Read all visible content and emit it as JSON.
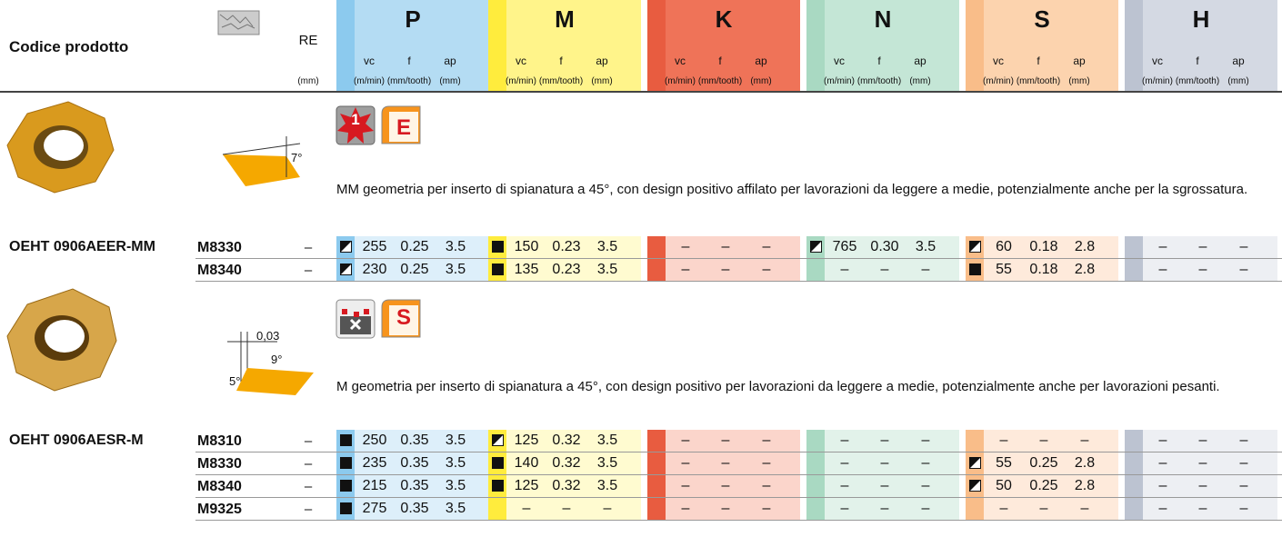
{
  "header": {
    "product_code": "Codice prodotto",
    "re": "RE",
    "re_unit": "(mm)",
    "groups": [
      "P",
      "M",
      "K",
      "N",
      "S",
      "H"
    ],
    "columns": [
      "vc",
      "f",
      "ap"
    ],
    "units": [
      "(m/min)",
      "(mm/tooth)",
      "(mm)"
    ]
  },
  "sections": [
    {
      "icon_label": "1",
      "badge": "E",
      "angles": [
        "7°"
      ],
      "description": "MM geometria per inserto di spianatura a 45°, con design positivo affilato per lavorazioni da leggere a medie, potenzialmente anche per la sgrossatura.",
      "product": "OEHT 0906AEER-MM",
      "rows": [
        {
          "grade": "M8330",
          "re": "–",
          "cells": [
            {
              "icon": "half",
              "values": [
                "255",
                "0.25",
                "3.5"
              ]
            },
            {
              "icon": "full",
              "values": [
                "150",
                "0.23",
                "3.5"
              ]
            },
            {
              "values": [
                "–",
                "–",
                "–"
              ]
            },
            {
              "icon": "half",
              "values": [
                "765",
                "0.30",
                "3.5"
              ]
            },
            {
              "icon": "half",
              "values": [
                "60",
                "0.18",
                "2.8"
              ]
            },
            {
              "values": [
                "–",
                "–",
                "–"
              ]
            }
          ]
        },
        {
          "grade": "M8340",
          "re": "–",
          "cells": [
            {
              "icon": "half",
              "values": [
                "230",
                "0.25",
                "3.5"
              ]
            },
            {
              "icon": "full",
              "values": [
                "135",
                "0.23",
                "3.5"
              ]
            },
            {
              "values": [
                "–",
                "–",
                "–"
              ]
            },
            {
              "values": [
                "–",
                "–",
                "–"
              ]
            },
            {
              "icon": "full",
              "values": [
                "55",
                "0.18",
                "2.8"
              ]
            },
            {
              "values": [
                "–",
                "–",
                "–"
              ]
            }
          ]
        }
      ]
    },
    {
      "badge": "S",
      "angles": [
        "0,03",
        "9°",
        "5°"
      ],
      "description": "M geometria per inserto di spianatura a 45°, con design positivo per lavorazioni da leggere a medie, potenzialmente anche per lavorazioni pesanti.",
      "product": "OEHT 0906AESR-M",
      "rows": [
        {
          "grade": "M8310",
          "re": "–",
          "cells": [
            {
              "icon": "full",
              "values": [
                "250",
                "0.35",
                "3.5"
              ]
            },
            {
              "icon": "half",
              "values": [
                "125",
                "0.32",
                "3.5"
              ]
            },
            {
              "values": [
                "–",
                "–",
                "–"
              ]
            },
            {
              "values": [
                "–",
                "–",
                "–"
              ]
            },
            {
              "values": [
                "–",
                "–",
                "–"
              ]
            },
            {
              "values": [
                "–",
                "–",
                "–"
              ]
            }
          ]
        },
        {
          "grade": "M8330",
          "re": "–",
          "cells": [
            {
              "icon": "full",
              "values": [
                "235",
                "0.35",
                "3.5"
              ]
            },
            {
              "icon": "full",
              "values": [
                "140",
                "0.32",
                "3.5"
              ]
            },
            {
              "values": [
                "–",
                "–",
                "–"
              ]
            },
            {
              "values": [
                "–",
                "–",
                "–"
              ]
            },
            {
              "icon": "half",
              "values": [
                "55",
                "0.25",
                "2.8"
              ]
            },
            {
              "values": [
                "–",
                "–",
                "–"
              ]
            }
          ]
        },
        {
          "grade": "M8340",
          "re": "–",
          "cells": [
            {
              "icon": "full",
              "values": [
                "215",
                "0.35",
                "3.5"
              ]
            },
            {
              "icon": "full",
              "values": [
                "125",
                "0.32",
                "3.5"
              ]
            },
            {
              "values": [
                "–",
                "–",
                "–"
              ]
            },
            {
              "values": [
                "–",
                "–",
                "–"
              ]
            },
            {
              "icon": "half",
              "values": [
                "50",
                "0.25",
                "2.8"
              ]
            },
            {
              "values": [
                "–",
                "–",
                "–"
              ]
            }
          ]
        },
        {
          "grade": "M9325",
          "re": "–",
          "cells": [
            {
              "icon": "full",
              "values": [
                "275",
                "0.35",
                "3.5"
              ]
            },
            {
              "values": [
                "–",
                "–",
                "–"
              ]
            },
            {
              "values": [
                "–",
                "–",
                "–"
              ]
            },
            {
              "values": [
                "–",
                "–",
                "–"
              ]
            },
            {
              "values": [
                "–",
                "–",
                "–"
              ]
            },
            {
              "values": [
                "–",
                "–",
                "–"
              ]
            }
          ]
        }
      ]
    }
  ]
}
